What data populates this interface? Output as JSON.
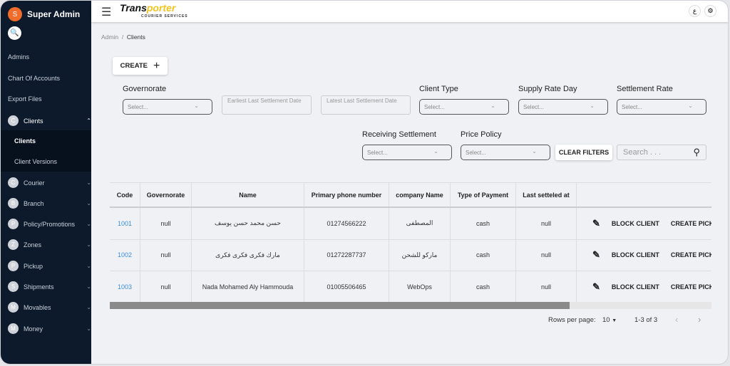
{
  "sidebar": {
    "user_initial": "S",
    "title": "Super Admin",
    "links": [
      "Admins",
      "Chart Of Accounts",
      "Export Files"
    ],
    "active_group": {
      "initial": "C",
      "label": "Clients",
      "children": [
        "Clients",
        "Client Versions"
      ]
    },
    "groups": [
      {
        "initial": "C",
        "label": "Courier"
      },
      {
        "initial": "B",
        "label": "Branch"
      },
      {
        "initial": "P",
        "label": "Policy/Promotions"
      },
      {
        "initial": "Z",
        "label": "Zones"
      },
      {
        "initial": "P",
        "label": "Pickup"
      },
      {
        "initial": "S",
        "label": "Shipments"
      },
      {
        "initial": "M",
        "label": "Movables"
      },
      {
        "initial": "M",
        "label": "Money"
      }
    ]
  },
  "header": {
    "logo_a": "Trans",
    "logo_b": "porter",
    "logo_tagline": "COURIER SERVICES",
    "lang_label": "ع"
  },
  "breadcrumb": {
    "root": "Admin",
    "current": "Clients"
  },
  "toolbar": {
    "create_label": "CREATE",
    "clear_filters_label": "CLEAR FILTERS",
    "search_placeholder": "Search . . ."
  },
  "filters": {
    "governorate": {
      "label": "Governorate",
      "placeholder": "Select..."
    },
    "earliest_date": {
      "label": "Earliest Last Settlement Date"
    },
    "latest_date": {
      "label": "Latest Last Settlement Date"
    },
    "client_type": {
      "label": "Client Type",
      "placeholder": "Select..."
    },
    "supply_rate_day": {
      "label": "Supply Rate Day",
      "placeholder": "Select..."
    },
    "settlement_rate": {
      "label": "Settlement Rate",
      "placeholder": "Select..."
    },
    "receiving_settlement": {
      "label": "Receiving Settlement",
      "placeholder": "Select..."
    },
    "price_policy": {
      "label": "Price Policy",
      "placeholder": "Select..."
    }
  },
  "table": {
    "columns": [
      "Code",
      "Governorate",
      "Name",
      "Primary phone number",
      "company Name",
      "Type of Payment",
      "Last setteled at",
      ""
    ],
    "rows": [
      {
        "code": "1001",
        "governorate": "null",
        "name": "حسن محمد حسن يوسف",
        "phone": "01274566222",
        "company": "المصطفى",
        "payment": "cash",
        "last_settled": "null"
      },
      {
        "code": "1002",
        "governorate": "null",
        "name": "مارك فكرى فكرى فكرى",
        "phone": "01272287737",
        "company": "ماركو للشحن",
        "payment": "cash",
        "last_settled": "null"
      },
      {
        "code": "1003",
        "governorate": "null",
        "name": "Nada Mohamed Aly Hammouda",
        "phone": "01005506465",
        "company": "WebOps",
        "payment": "cash",
        "last_settled": "null"
      }
    ],
    "action_block": "BLOCK CLIENT",
    "action_pickup": "CREATE PICKUP"
  },
  "pagination": {
    "rows_per_page_label": "Rows per page:",
    "rows_per_page": "10",
    "range": "1-3 of 3"
  }
}
